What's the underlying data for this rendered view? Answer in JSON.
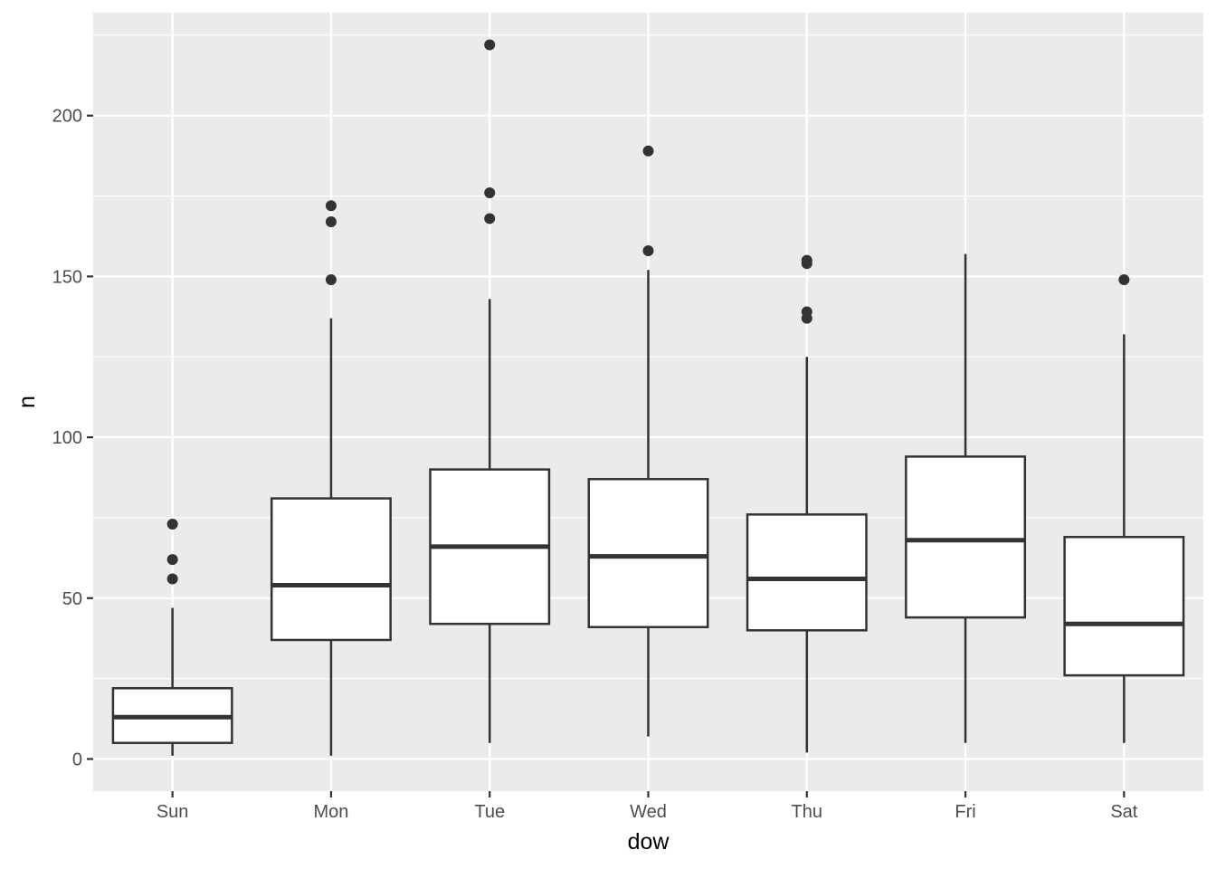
{
  "chart_data": {
    "type": "boxplot",
    "xlabel": "dow",
    "ylabel": "n",
    "ylim": [
      -10,
      232
    ],
    "yticks": [
      0,
      50,
      100,
      150,
      200
    ],
    "ytick_labels": [
      "0",
      "50",
      "100",
      "150",
      "200"
    ],
    "grid": true,
    "categories": [
      "Sun",
      "Mon",
      "Tue",
      "Wed",
      "Thu",
      "Fri",
      "Sat"
    ],
    "boxes": [
      {
        "category": "Sun",
        "whisker_low": 1,
        "q1": 5,
        "median": 13,
        "q3": 22,
        "whisker_high": 47,
        "outliers": [
          56,
          62,
          73
        ]
      },
      {
        "category": "Mon",
        "whisker_low": 1,
        "q1": 37,
        "median": 54,
        "q3": 81,
        "whisker_high": 137,
        "outliers": [
          149,
          167,
          172
        ]
      },
      {
        "category": "Tue",
        "whisker_low": 5,
        "q1": 42,
        "median": 66,
        "q3": 90,
        "whisker_high": 143,
        "outliers": [
          168,
          176,
          222
        ]
      },
      {
        "category": "Wed",
        "whisker_low": 7,
        "q1": 41,
        "median": 63,
        "q3": 87,
        "whisker_high": 152,
        "outliers": [
          158,
          189
        ]
      },
      {
        "category": "Thu",
        "whisker_low": 2,
        "q1": 40,
        "median": 56,
        "q3": 76,
        "whisker_high": 125,
        "outliers": [
          137,
          139,
          154,
          155
        ]
      },
      {
        "category": "Fri",
        "whisker_low": 5,
        "q1": 44,
        "median": 68,
        "q3": 94,
        "whisker_high": 157,
        "outliers": []
      },
      {
        "category": "Sat",
        "whisker_low": 5,
        "q1": 26,
        "median": 42,
        "q3": 69,
        "whisker_high": 132,
        "outliers": [
          149
        ]
      }
    ],
    "colors": {
      "panel": "#ebebeb",
      "grid": "#ffffff",
      "box_fill": "#ffffff",
      "stroke": "#333333",
      "tick_text": "#4d4d4d"
    }
  }
}
